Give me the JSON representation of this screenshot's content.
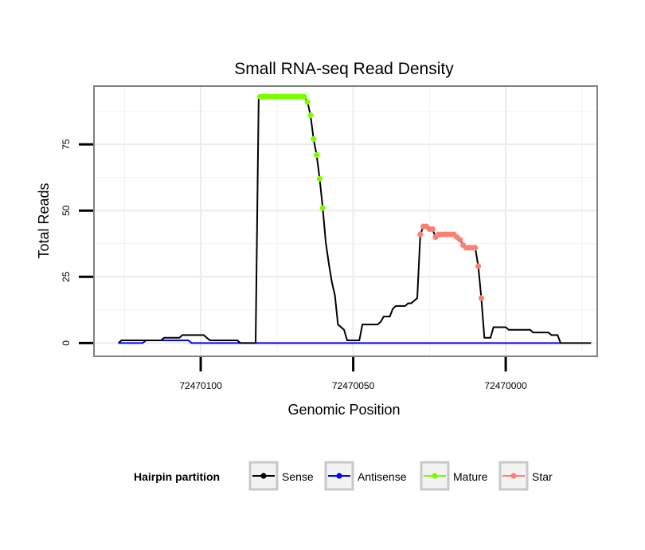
{
  "chart_data": {
    "type": "line",
    "title": "Small RNA-seq Read Density",
    "xlabel": "Genomic Position",
    "ylabel": "Total Reads",
    "xlim": [
      72470135,
      72469970
    ],
    "ylim": [
      -5,
      97
    ],
    "x_ticks": [
      72470100,
      72470050,
      72470000
    ],
    "x_tick_labels": [
      "72470100",
      "72470050",
      "72470000"
    ],
    "y_ticks": [
      0,
      25,
      50,
      75
    ],
    "y_tick_labels": [
      "0",
      "25",
      "50",
      "75"
    ],
    "x_minor_gridlines": [
      72470125,
      72470075,
      72470025,
      72469975
    ],
    "y_minor_gridlines": [
      12.5,
      37.5,
      62.5,
      87.5
    ],
    "grid": true,
    "legend": {
      "title": "Hairpin partition",
      "placement": "bottom",
      "entries": [
        {
          "label": "Sense",
          "color": "#000000"
        },
        {
          "label": "Antisense",
          "color": "#0000ff"
        },
        {
          "label": "Mature",
          "color": "#7cfc00"
        },
        {
          "label": "Star",
          "color": "#fa8072"
        }
      ]
    },
    "series": [
      {
        "name": "Sense",
        "color": "#000000",
        "style": "line",
        "points": [
          [
            72470127,
            0
          ],
          [
            72470126,
            1
          ],
          [
            72470118,
            1
          ],
          [
            72470117,
            1
          ],
          [
            72470113,
            1
          ],
          [
            72470112,
            2
          ],
          [
            72470107,
            2
          ],
          [
            72470106,
            3
          ],
          [
            72470099,
            3
          ],
          [
            72470098,
            2
          ],
          [
            72470097,
            1
          ],
          [
            72470088,
            1
          ],
          [
            72470087,
            0
          ],
          [
            72470082,
            0
          ],
          [
            72470081,
            92
          ],
          [
            72470080,
            93
          ],
          [
            72470066,
            93
          ],
          [
            72470065,
            91
          ],
          [
            72470064,
            86
          ],
          [
            72470063,
            77
          ],
          [
            72470062,
            71
          ],
          [
            72470061,
            62
          ],
          [
            72470060,
            51
          ],
          [
            72470059,
            38
          ],
          [
            72470058,
            30
          ],
          [
            72470057,
            23
          ],
          [
            72470056,
            18
          ],
          [
            72470055,
            7
          ],
          [
            72470054,
            6
          ],
          [
            72470053,
            5
          ],
          [
            72470052,
            1
          ],
          [
            72470048,
            1
          ],
          [
            72470047,
            7
          ],
          [
            72470042,
            7
          ],
          [
            72470041,
            8
          ],
          [
            72470040,
            10
          ],
          [
            72470038,
            10
          ],
          [
            72470037,
            13
          ],
          [
            72470036,
            14
          ],
          [
            72470033,
            14
          ],
          [
            72470032,
            15
          ],
          [
            72470031,
            15
          ],
          [
            72470030,
            16
          ],
          [
            72470029,
            17
          ],
          [
            72470028,
            41
          ],
          [
            72470027,
            44
          ],
          [
            72470026,
            44
          ],
          [
            72470025,
            43
          ],
          [
            72470024,
            43
          ],
          [
            72470023,
            40
          ],
          [
            72470022,
            41
          ],
          [
            72470021,
            41
          ],
          [
            72470017,
            41
          ],
          [
            72470016,
            40
          ],
          [
            72470015,
            39
          ],
          [
            72470014,
            37
          ],
          [
            72470013,
            36
          ],
          [
            72470010,
            36
          ],
          [
            72470009,
            29
          ],
          [
            72470008,
            17
          ],
          [
            72470007,
            2
          ],
          [
            72470005,
            2
          ],
          [
            72470004,
            6
          ],
          [
            72470000,
            6
          ],
          [
            72469999,
            5
          ],
          [
            72469992,
            5
          ],
          [
            72469991,
            4
          ],
          [
            72469986,
            4
          ],
          [
            72469985,
            3
          ],
          [
            72469983,
            3
          ],
          [
            72469982,
            0
          ],
          [
            72469972,
            0
          ]
        ]
      },
      {
        "name": "Antisense",
        "color": "#0000ff",
        "style": "line",
        "points": [
          [
            72470127,
            0
          ],
          [
            72470119,
            0
          ],
          [
            72470118,
            1
          ],
          [
            72470107,
            1
          ],
          [
            72470106,
            1
          ],
          [
            72470104,
            1
          ],
          [
            72470103,
            0
          ],
          [
            72469982,
            0
          ]
        ]
      },
      {
        "name": "Mature",
        "color": "#7cfc00",
        "style": "points",
        "points": [
          [
            72470080.5,
            93
          ],
          [
            72470080,
            93
          ],
          [
            72470079.5,
            93
          ],
          [
            72470079,
            93
          ],
          [
            72470078.5,
            93
          ],
          [
            72470078,
            93
          ],
          [
            72470077.5,
            93
          ],
          [
            72470077,
            93
          ],
          [
            72470076.5,
            93
          ],
          [
            72470076,
            93
          ],
          [
            72470075.5,
            93
          ],
          [
            72470075,
            93
          ],
          [
            72470074.5,
            93
          ],
          [
            72470074,
            93
          ],
          [
            72470073.5,
            93
          ],
          [
            72470073,
            93
          ],
          [
            72470072.5,
            93
          ],
          [
            72470072,
            93
          ],
          [
            72470071.5,
            93
          ],
          [
            72470071,
            93
          ],
          [
            72470070.5,
            93
          ],
          [
            72470070,
            93
          ],
          [
            72470069.5,
            93
          ],
          [
            72470069,
            93
          ],
          [
            72470068.5,
            93
          ],
          [
            72470068,
            93
          ],
          [
            72470067.5,
            93
          ],
          [
            72470067,
            93
          ],
          [
            72470066.5,
            93
          ],
          [
            72470066,
            93
          ],
          [
            72470065,
            91
          ],
          [
            72470064,
            86
          ],
          [
            72470063,
            77
          ],
          [
            72470062,
            71
          ],
          [
            72470061,
            62
          ],
          [
            72470060,
            51
          ]
        ]
      },
      {
        "name": "Star",
        "color": "#fa8072",
        "style": "points",
        "points": [
          [
            72470028,
            41
          ],
          [
            72470027,
            44
          ],
          [
            72470026,
            44
          ],
          [
            72470025,
            43
          ],
          [
            72470024,
            43
          ],
          [
            72470023,
            40
          ],
          [
            72470022,
            41
          ],
          [
            72470021,
            41
          ],
          [
            72470020,
            41
          ],
          [
            72470019,
            41
          ],
          [
            72470018,
            41
          ],
          [
            72470017,
            41
          ],
          [
            72470016,
            40
          ],
          [
            72470015,
            39
          ],
          [
            72470014,
            37
          ],
          [
            72470013,
            36
          ],
          [
            72470012,
            36
          ],
          [
            72470011,
            36
          ],
          [
            72470010,
            36
          ],
          [
            72470009,
            29
          ],
          [
            72470008,
            17
          ]
        ]
      }
    ]
  }
}
